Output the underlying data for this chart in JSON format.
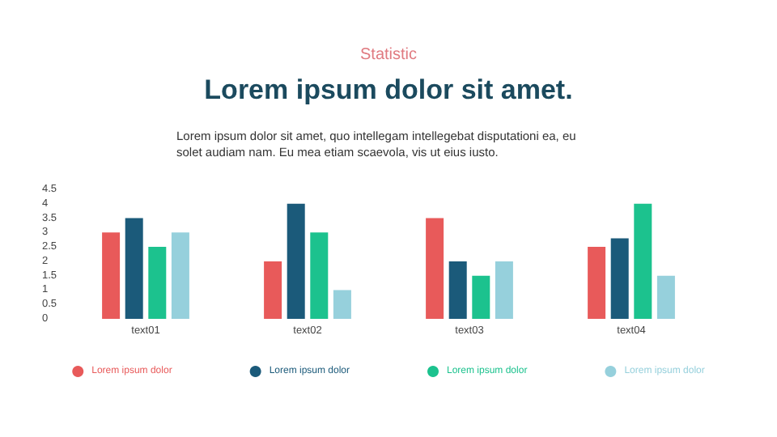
{
  "chart_data": {
    "type": "bar",
    "subtitle": "Statistic",
    "title": "Lorem ipsum dolor sit amet.",
    "annotations": [
      "Lorem ipsum dolor sit amet, quo intellegam intellegebat disputationi ea, eu solet audiam nam. Eu mea etiam scaevola, vis ut eius iusto."
    ],
    "categories": [
      "text01",
      "text02",
      "text03",
      "text04"
    ],
    "series": [
      {
        "name": "Lorem ipsum dolor",
        "color": "#e85a5a",
        "values": [
          3,
          2,
          3.5,
          2.5
        ]
      },
      {
        "name": "Lorem ipsum dolor",
        "color": "#1b5a7a",
        "values": [
          3.5,
          4,
          2,
          2.8
        ]
      },
      {
        "name": "Lorem ipsum dolor",
        "color": "#1cc28e",
        "values": [
          2.5,
          3,
          1.5,
          4
        ]
      },
      {
        "name": "Lorem ipsum dolor",
        "color": "#96d0dc",
        "values": [
          3,
          1,
          2,
          1.5
        ]
      }
    ],
    "ylim": [
      0,
      4.5
    ],
    "yticks": [
      0,
      0.5,
      1,
      1.5,
      2,
      2.5,
      3,
      3.5,
      4,
      4.5
    ],
    "grid": false,
    "legend": "bottom"
  }
}
